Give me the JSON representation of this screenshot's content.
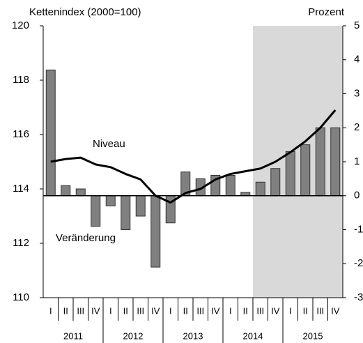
{
  "chart_data": {
    "type": "bar-line",
    "y_label": "Kettenindex (2000=100)",
    "y2_label": "Prozent",
    "annotations": [
      "Niveau",
      "Veränderung"
    ],
    "categories": [
      "I",
      "II",
      "III",
      "IV",
      "I",
      "II",
      "III",
      "IV",
      "I",
      "II",
      "III",
      "IV",
      "I",
      "II",
      "III",
      "IV",
      "I",
      "II",
      "III",
      "IV"
    ],
    "groups": [
      "2011",
      "2012",
      "2013",
      "2014",
      "2015"
    ],
    "highlight": {
      "start": 14,
      "end": 19,
      "color": "#d9d9d9"
    },
    "ylim": [
      110,
      120
    ],
    "yticks": [
      110,
      112,
      114,
      116,
      118,
      120
    ],
    "y2lim": [
      -3,
      5
    ],
    "y2ticks": [
      -3,
      -2,
      -1,
      0,
      1,
      2,
      3,
      4,
      5
    ],
    "series": [
      {
        "name": "Veränderung",
        "type": "bar",
        "axis": "y2",
        "color": "#808080",
        "values": [
          3.7,
          0.3,
          0.2,
          -0.9,
          -0.3,
          -1.0,
          -0.6,
          -2.1,
          -0.8,
          0.7,
          0.5,
          0.6,
          0.6,
          0.1,
          0.4,
          0.8,
          1.3,
          1.5,
          2.0,
          2.0
        ]
      },
      {
        "name": "Niveau",
        "type": "line",
        "axis": "y",
        "color": "#000000",
        "values": [
          115.0,
          115.1,
          115.15,
          114.9,
          114.8,
          114.55,
          114.35,
          113.75,
          113.5,
          113.85,
          114.0,
          114.35,
          114.55,
          114.65,
          114.75,
          115.0,
          115.35,
          115.75,
          116.25,
          116.9
        ]
      }
    ]
  }
}
